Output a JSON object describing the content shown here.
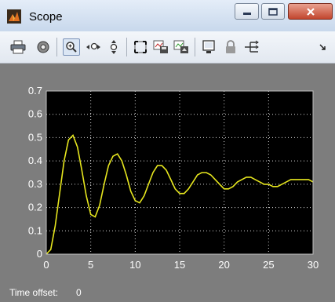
{
  "window": {
    "title": "Scope",
    "accent": "#c2462e"
  },
  "toolbar": {
    "icons": [
      "print-icon",
      "parameters-icon",
      "zoom-icon",
      "zoom-x-icon",
      "zoom-y-icon",
      "autoscale-icon",
      "save-axes-icon",
      "restore-axes-icon",
      "floating-scope-icon",
      "lock-axes-icon",
      "signal-selection-icon",
      "toolbar-overflow-icon"
    ]
  },
  "status": {
    "label": "Time offset:",
    "value": "0"
  },
  "chart_data": {
    "type": "line",
    "title": "",
    "xlabel": "",
    "ylabel": "",
    "xlim": [
      0,
      30
    ],
    "ylim": [
      0,
      0.7
    ],
    "xticks": [
      "0",
      "5",
      "10",
      "15",
      "20",
      "25",
      "30"
    ],
    "yticks": [
      "0",
      "0.1",
      "0.2",
      "0.3",
      "0.4",
      "0.5",
      "0.6",
      "0.7"
    ],
    "grid": true,
    "background": "#000000",
    "line_color": "#e6e61e",
    "series": [
      {
        "x": [
          0,
          0.5,
          1,
          1.5,
          2,
          2.5,
          3,
          3.5,
          4,
          4.5,
          5,
          5.5,
          6,
          6.5,
          7,
          7.5,
          8,
          8.5,
          9,
          9.5,
          10,
          10.5,
          11,
          11.5,
          12,
          12.5,
          13,
          13.5,
          14,
          14.5,
          15,
          15.5,
          16,
          16.5,
          17,
          17.5,
          18,
          18.5,
          19,
          19.5,
          20,
          20.5,
          21,
          21.5,
          22,
          22.5,
          23,
          23.5,
          24,
          24.5,
          25,
          25.5,
          26,
          26.5,
          27,
          27.5,
          28,
          28.5,
          29,
          29.5,
          30
        ],
        "y": [
          0,
          0.02,
          0.12,
          0.26,
          0.4,
          0.49,
          0.51,
          0.46,
          0.36,
          0.25,
          0.17,
          0.16,
          0.21,
          0.3,
          0.38,
          0.42,
          0.43,
          0.4,
          0.34,
          0.27,
          0.23,
          0.22,
          0.25,
          0.3,
          0.35,
          0.38,
          0.38,
          0.36,
          0.32,
          0.28,
          0.26,
          0.26,
          0.28,
          0.31,
          0.34,
          0.35,
          0.35,
          0.34,
          0.32,
          0.3,
          0.28,
          0.28,
          0.29,
          0.31,
          0.32,
          0.33,
          0.33,
          0.32,
          0.31,
          0.3,
          0.3,
          0.29,
          0.29,
          0.3,
          0.31,
          0.32,
          0.32,
          0.32,
          0.32,
          0.32,
          0.31
        ]
      }
    ]
  }
}
